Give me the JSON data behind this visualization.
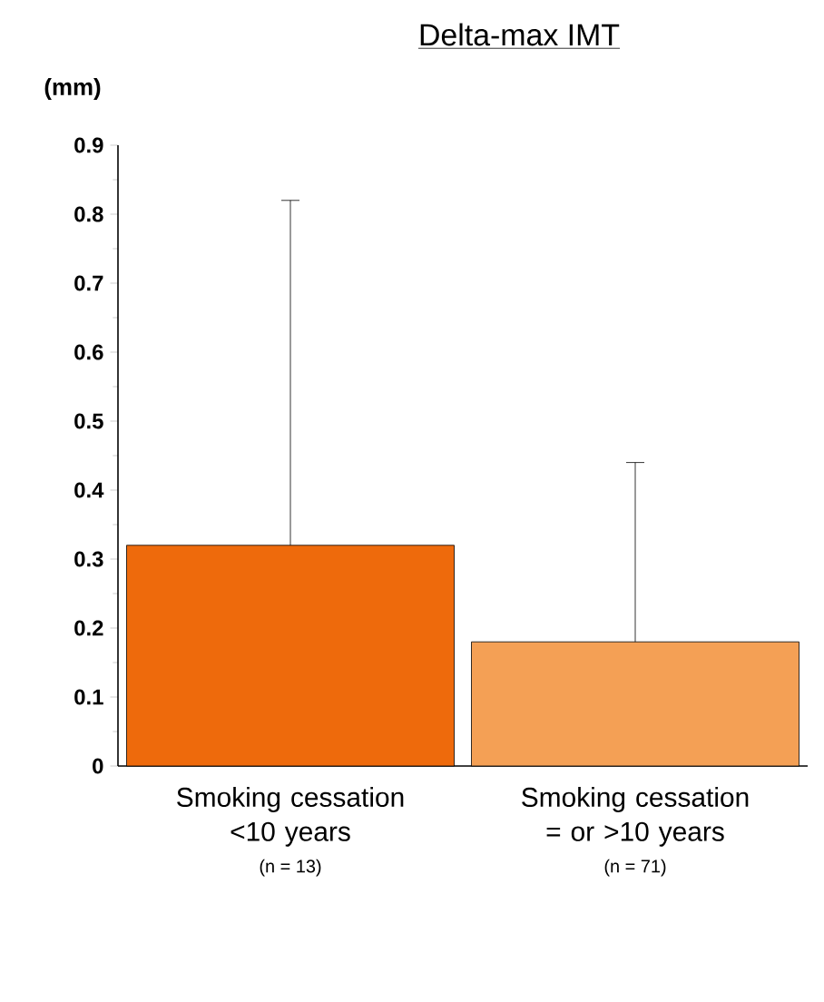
{
  "chart_data": {
    "type": "bar",
    "title": "Delta-max IMT",
    "ylabel": "(mm)",
    "categories": [
      "Smoking cessation <10 years",
      "Smoking cessation = or >10 years"
    ],
    "values": [
      0.32,
      0.18
    ],
    "colors": [
      "#ee6a0c",
      "#f4a055"
    ],
    "errors": [
      [
        0.32,
        0.82
      ],
      [
        0.18,
        0.44
      ]
    ],
    "annotations": [
      "(n = 13)",
      "(n = 71)"
    ],
    "ylim": [
      0,
      0.9
    ],
    "yticks": [
      0,
      0.1,
      0.2,
      0.3,
      0.4,
      0.5,
      0.6,
      0.7,
      0.8,
      0.9
    ],
    "grid": false
  }
}
